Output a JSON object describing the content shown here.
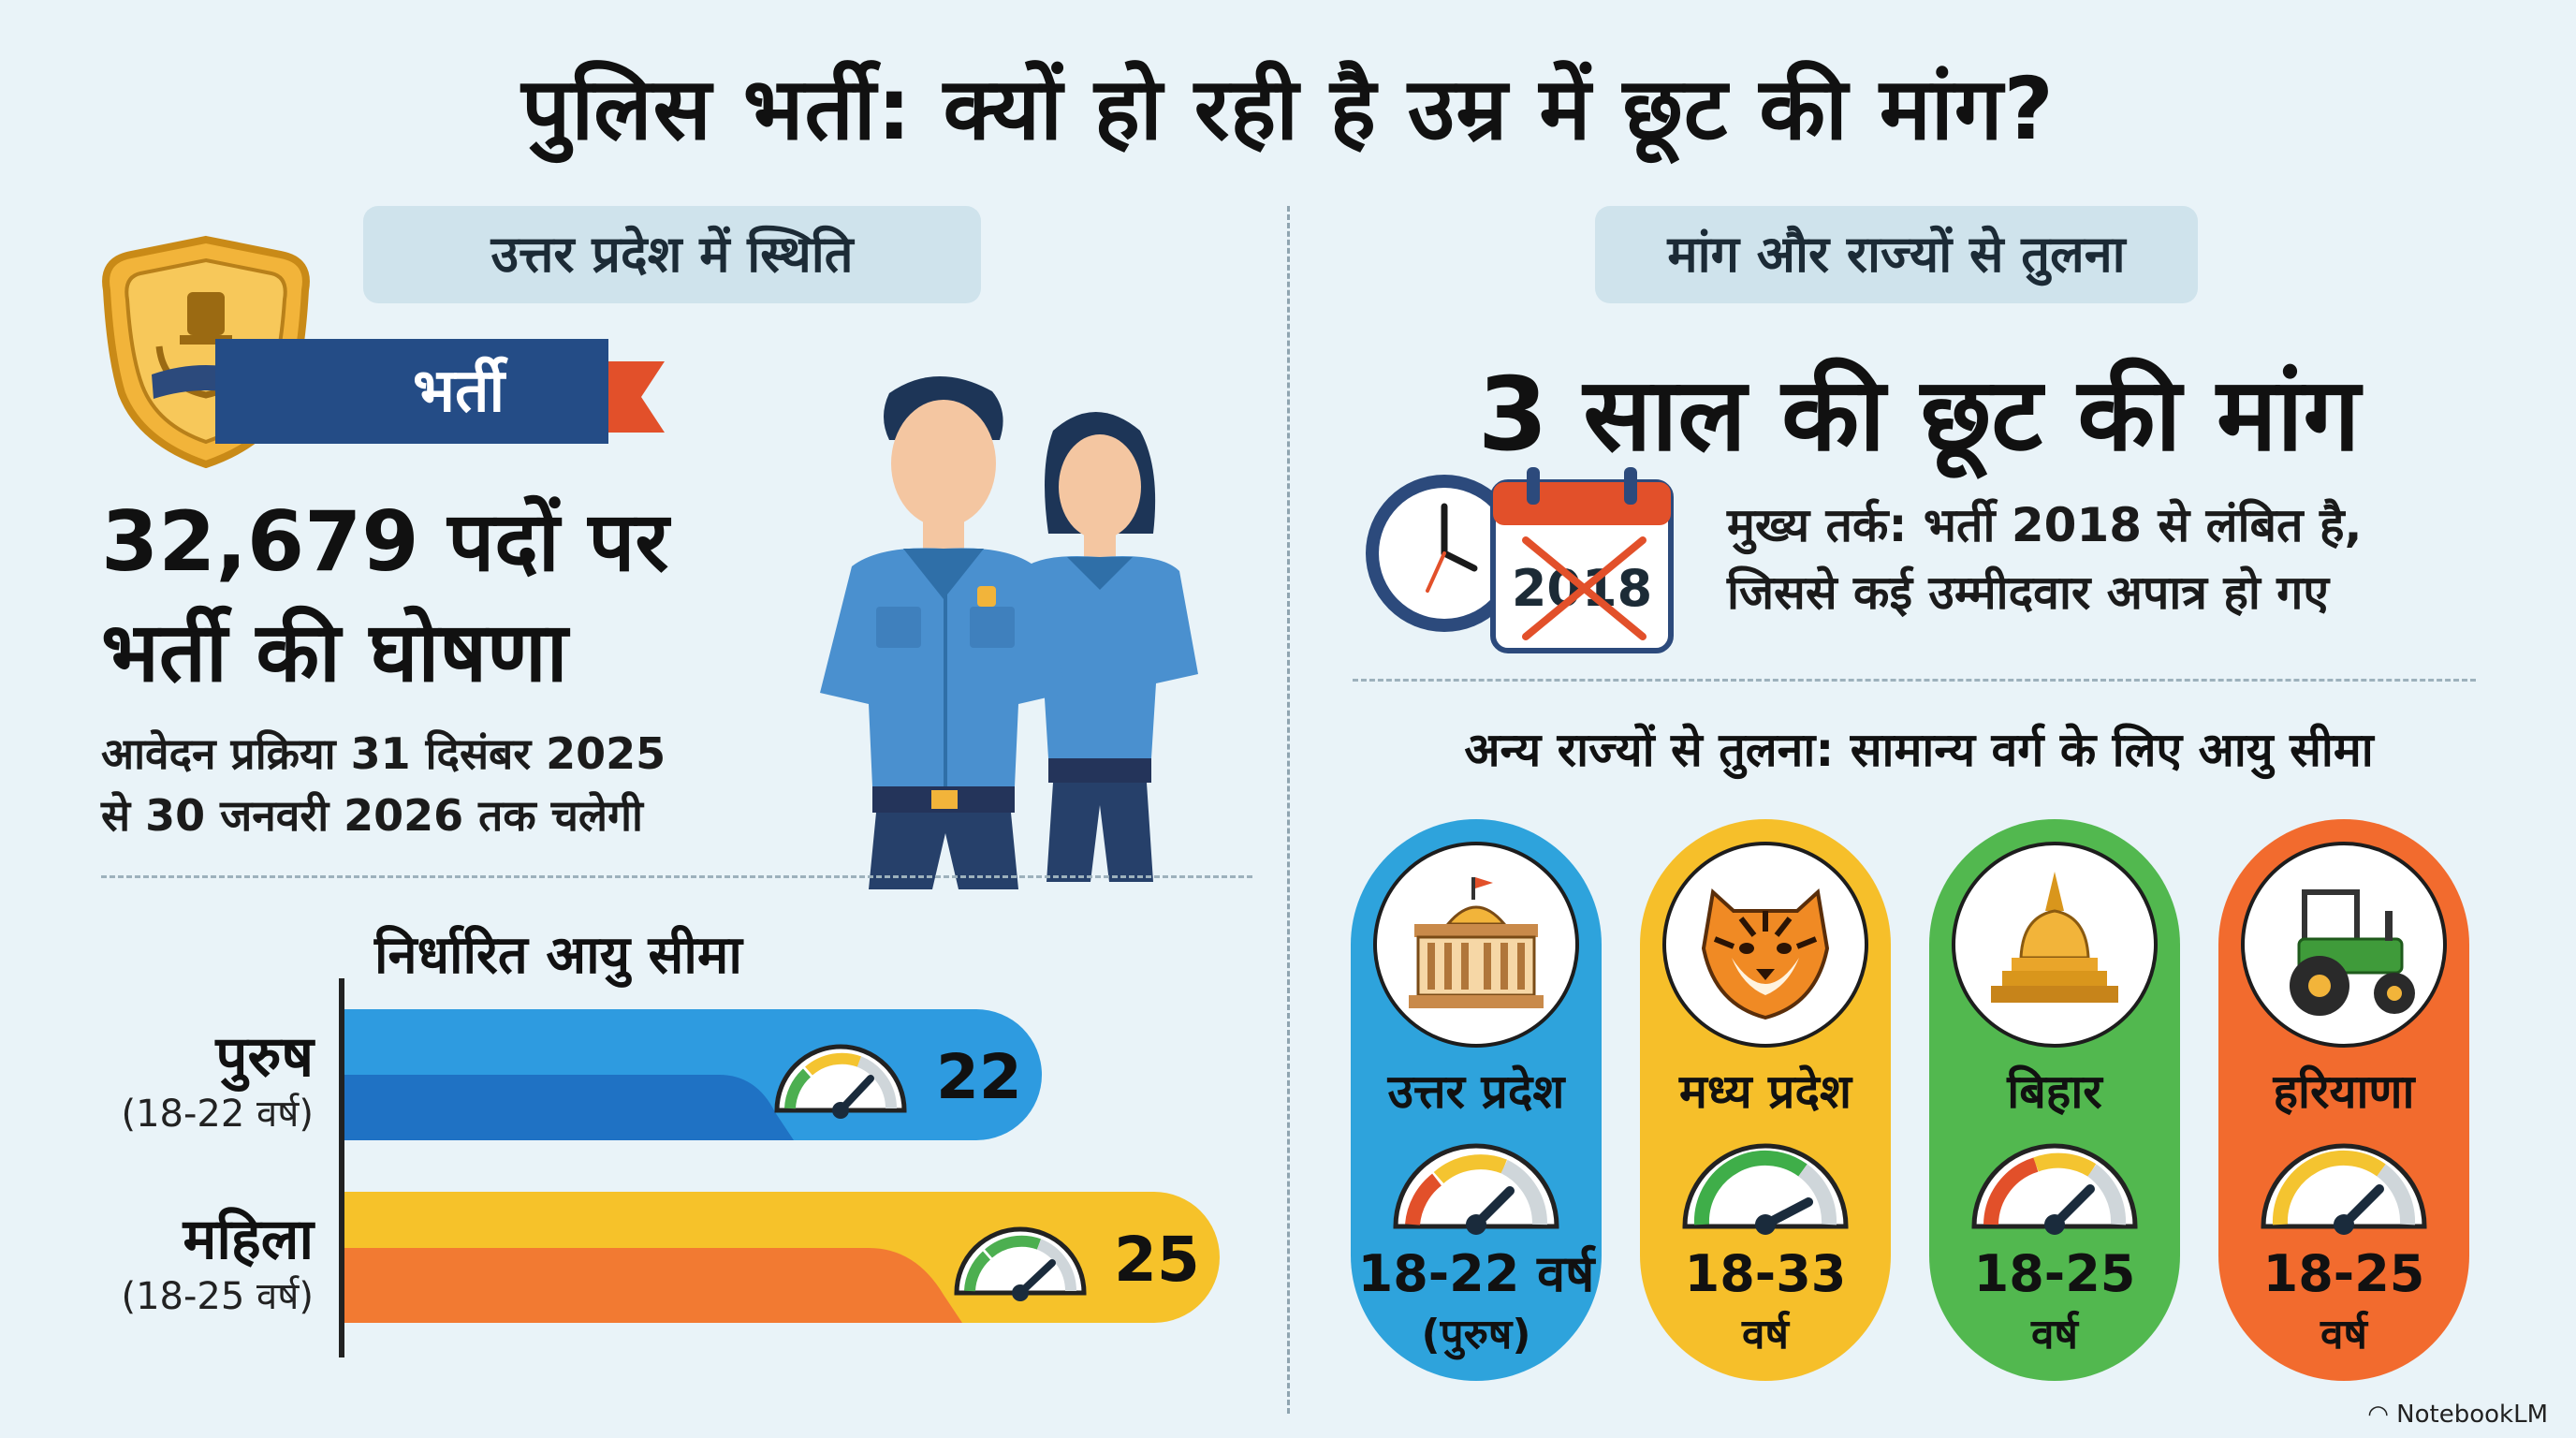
{
  "title": "पुलिस भर्ती: क्यों हो रही है उम्र में छूट की मांग?",
  "left": {
    "section_title": "उत्तर प्रदेश में स्थिति",
    "ribbon_label": "भर्ती",
    "posts_line1": "32,679 पदों पर",
    "posts_line2": "भर्ती की घोषणा",
    "dates_line1": "आवेदन प्रक्रिया 31 दिसंबर 2025",
    "dates_line2": "से 30 जनवरी 2026 तक चलेगी",
    "age_chart": {
      "heading": "निर्धारित आयु सीमा",
      "rows": [
        {
          "label": "पुरुष",
          "sub": "(18-22 वर्ष)",
          "value": "22"
        },
        {
          "label": "महिला",
          "sub": "(18-25 वर्ष)",
          "value": "25"
        }
      ]
    }
  },
  "right": {
    "section_title": "मांग और राज्यों से तुलना",
    "demand_heading": "3 साल की छूट की मांग",
    "calendar_year": "2018",
    "argument_line1": "मुख्य तर्क: भर्ती 2018 से लंबित है,",
    "argument_line2": "जिससे कई उम्मीदवार अपात्र हो गए",
    "comparison_heading": "अन्य राज्यों से तुलना: सामान्य वर्ग के लिए आयु सीमा",
    "states": [
      {
        "name": "उत्तर प्रदेश",
        "range": "18-22 वर्ष",
        "sub": "(पुरुष)",
        "color": "#2ea3dc",
        "icon": "government-building-icon"
      },
      {
        "name": "मध्य प्रदेश",
        "range": "18-33",
        "sub": "वर्ष",
        "color": "#f6bf2a",
        "icon": "tiger-icon"
      },
      {
        "name": "बिहार",
        "range": "18-25",
        "sub": "वर्ष",
        "color": "#52b84f",
        "icon": "stupa-icon"
      },
      {
        "name": "हरियाणा",
        "range": "18-25",
        "sub": "वर्ष",
        "color": "#f26b2e",
        "icon": "tractor-icon"
      }
    ]
  },
  "footer": {
    "brand": "NotebookLM"
  }
}
